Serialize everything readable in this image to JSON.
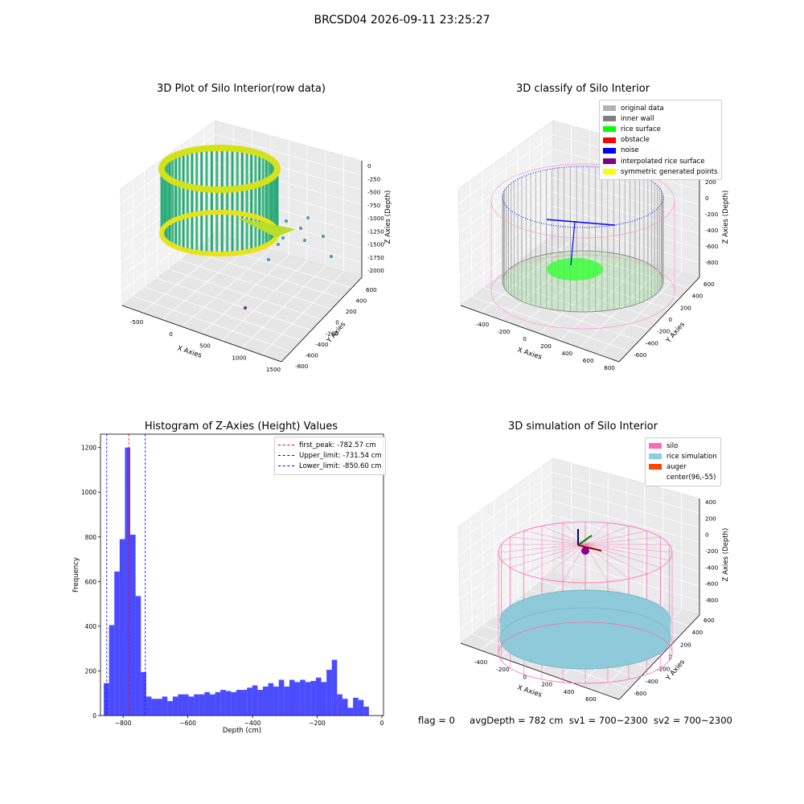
{
  "suptitle": "BRCSD04 2026-09-11 23:25:27",
  "panels": {
    "raw": {
      "title": "3D Plot of Silo Interior(row data)",
      "xlabel": "X Axies",
      "ylabel": "Y Axies",
      "zlabel": "Z Axies (Depth)",
      "xticks": [
        "-500",
        "0",
        "500",
        "1000",
        "1500"
      ],
      "yticks": [
        "-800",
        "-600",
        "-400",
        "-200",
        "0",
        "200",
        "400",
        "600"
      ],
      "zticks": [
        "0",
        "-250",
        "-500",
        "-750",
        "-1000",
        "-1250",
        "-1500",
        "-1750",
        "-2000"
      ]
    },
    "classify": {
      "title": "3D classify of Silo Interior",
      "xlabel": "X Axies",
      "ylabel": "Y Axies",
      "zlabel": "Z Axies (Depth)",
      "xticks": [
        "-400",
        "-200",
        "0",
        "200",
        "400",
        "600",
        "800"
      ],
      "yticks": [
        "-600",
        "-400",
        "-200",
        "0",
        "200",
        "400",
        "600"
      ],
      "zticks": [
        "200",
        "0",
        "-200",
        "-400",
        "-600",
        "-800"
      ],
      "legend": [
        {
          "label": "original data",
          "color": "#b3b3b3"
        },
        {
          "label": "inner wall",
          "color": "#808080"
        },
        {
          "label": "rice surface",
          "color": "#00ff00"
        },
        {
          "label": "obstacle",
          "color": "#ff0000"
        },
        {
          "label": "noise",
          "color": "#0000ff"
        },
        {
          "label": "interpolated rice surface",
          "color": "#800080"
        },
        {
          "label": "symmetric generated points",
          "color": "#ffff00"
        }
      ]
    },
    "simulation": {
      "title": "3D simulation of Silo Interior",
      "xlabel": "X Axies",
      "ylabel": "Y Axies",
      "zlabel": "Z Axies (Depth)",
      "xticks": [
        "-400",
        "-200",
        "0",
        "200",
        "400",
        "600"
      ],
      "yticks": [
        "-600",
        "-400",
        "-200",
        "0",
        "200",
        "400",
        "600"
      ],
      "zticks": [
        "400",
        "200",
        "0",
        "-200",
        "-400",
        "-600",
        "-800"
      ],
      "legend": [
        {
          "label": "silo",
          "color": "#ff69b4"
        },
        {
          "label": "rice simulation",
          "color": "#87ceeb"
        },
        {
          "label": "auger",
          "color": "#ff4500"
        },
        {
          "label": "center(96,-55)",
          "color": "#ffffff"
        }
      ]
    }
  },
  "chart_data": {
    "type": "bar",
    "title": "Histogram of Z-Axies (Height) Values",
    "xlabel": "Depth (cm)",
    "ylabel": "Frequency",
    "xlim": [
      -870,
      5
    ],
    "ylim": [
      0,
      1260
    ],
    "xticks": [
      -800,
      -600,
      -400,
      -200,
      0
    ],
    "yticks": [
      0,
      200,
      400,
      600,
      800,
      1000,
      1200
    ],
    "bar_color": "#0000ff",
    "bin_start": -860,
    "bin_width": 16.4,
    "values": [
      145,
      405,
      645,
      790,
      1200,
      810,
      535,
      195,
      85,
      75,
      75,
      85,
      65,
      85,
      95,
      95,
      85,
      95,
      95,
      105,
      95,
      105,
      115,
      110,
      105,
      115,
      115,
      125,
      135,
      115,
      130,
      145,
      130,
      160,
      130,
      160,
      150,
      160,
      150,
      155,
      170,
      150,
      205,
      250,
      95,
      75,
      35,
      80,
      70,
      40
    ],
    "reference_lines": [
      {
        "label": "first_peak: -782.57 cm",
        "x": -782.57,
        "color": "#ff0000"
      },
      {
        "label": "Upper_limit: -731.54 cm",
        "x": -731.54,
        "color": "#0000ff"
      },
      {
        "label": "Lower_limit: -850.60 cm",
        "x": -850.6,
        "color": "#0000ff"
      }
    ],
    "legend_position": "top-right"
  },
  "status": {
    "flag": "flag = 0",
    "avg_depth": "avgDepth = 782 cm",
    "sv1": "sv1 = 700~2300",
    "sv2": "sv2 = 700~2300"
  }
}
